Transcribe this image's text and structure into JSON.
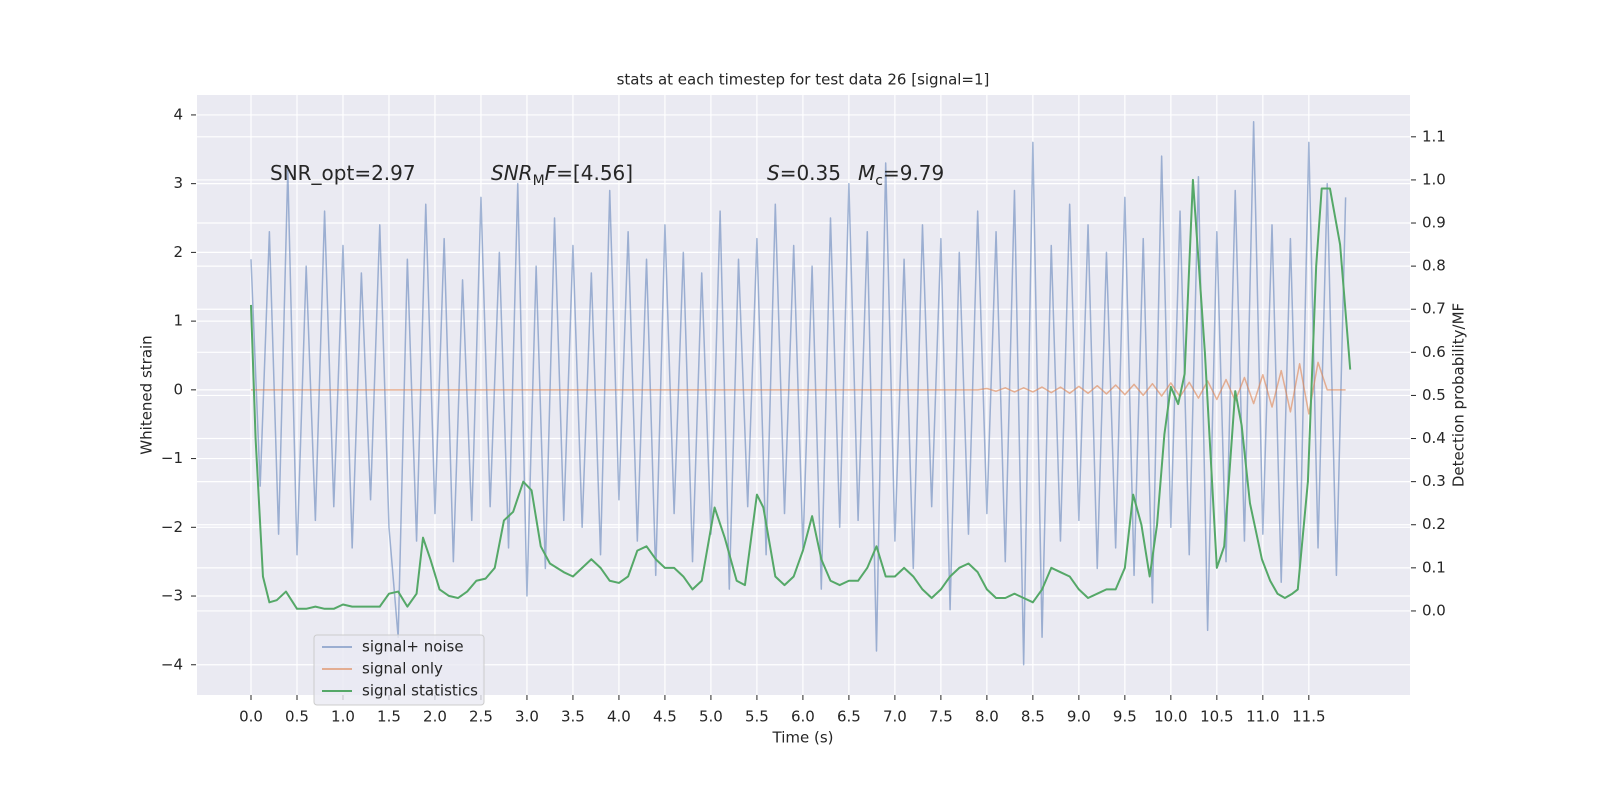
{
  "chart_data": {
    "type": "line",
    "title": "stats at each timestep for test data 26 [signal=1]",
    "xlabel": "Time (s)",
    "ylabel": "Whitened strain",
    "y2label": "Detection probability/MF",
    "grid": true,
    "legend": "lower left",
    "xlim": [
      -0.587,
      12.6
    ],
    "ylim": [
      -4.44,
      4.29
    ],
    "y2lim": [
      -0.195,
      1.197
    ],
    "xticks": [
      {
        "value": 0,
        "label": "0.0"
      },
      {
        "value": 0.5,
        "label": "0.5"
      },
      {
        "value": 1,
        "label": "1.0"
      },
      {
        "value": 1.5,
        "label": "1.5"
      },
      {
        "value": 2,
        "label": "2.0"
      },
      {
        "value": 2.5,
        "label": "2.5"
      },
      {
        "value": 3,
        "label": "3.0"
      },
      {
        "value": 3.5,
        "label": "3.5"
      },
      {
        "value": 4,
        "label": "4.0"
      },
      {
        "value": 4.5,
        "label": "4.5"
      },
      {
        "value": 5,
        "label": "5.0"
      },
      {
        "value": 5.5,
        "label": "5.5"
      },
      {
        "value": 6,
        "label": "6.0"
      },
      {
        "value": 6.5,
        "label": "6.5"
      },
      {
        "value": 7,
        "label": "7.0"
      },
      {
        "value": 7.5,
        "label": "7.5"
      },
      {
        "value": 8,
        "label": "8.0"
      },
      {
        "value": 8.5,
        "label": "8.5"
      },
      {
        "value": 9,
        "label": "9.0"
      },
      {
        "value": 9.5,
        "label": "9.5"
      },
      {
        "value": 10,
        "label": "10.0"
      },
      {
        "value": 10.5,
        "label": "10.5"
      },
      {
        "value": 11,
        "label": "11.0"
      },
      {
        "value": 11.5,
        "label": "11.5"
      }
    ],
    "yticks": [
      {
        "value": -4,
        "label": "−4"
      },
      {
        "value": -3,
        "label": "−3"
      },
      {
        "value": -2,
        "label": "−2"
      },
      {
        "value": -1,
        "label": "−1"
      },
      0,
      1,
      2,
      3,
      4
    ],
    "y2ticks": [
      {
        "value": 0,
        "label": "0.0"
      },
      {
        "value": 0.1,
        "label": "0.1"
      },
      {
        "value": 0.2,
        "label": "0.2"
      },
      {
        "value": 0.3,
        "label": "0.3"
      },
      {
        "value": 0.4,
        "label": "0.4"
      },
      {
        "value": 0.5,
        "label": "0.5"
      },
      {
        "value": 0.6,
        "label": "0.6"
      },
      {
        "value": 0.7,
        "label": "0.7"
      },
      {
        "value": 0.8,
        "label": "0.8"
      },
      {
        "value": 0.9,
        "label": "0.9"
      },
      {
        "value": 1,
        "label": "1.0"
      },
      {
        "value": 1.1,
        "label": "1.1"
      }
    ],
    "annotations": [
      [
        {
          "text": "SNR_opt=2.97"
        }
      ],
      [
        {
          "text": "SNR",
          "style": "italic"
        },
        {
          "text": "M",
          "style": "sub"
        },
        {
          "text": "F",
          "style": "italic"
        },
        {
          "text": "=[4.56]"
        }
      ],
      [
        {
          "text": "S",
          "style": "italic"
        },
        {
          "text": "=0.35"
        }
      ],
      [
        {
          "text": "M",
          "style": "italic"
        },
        {
          "text": "c",
          "style": "sub"
        },
        {
          "text": "=9.79"
        }
      ]
    ],
    "x": [
      0,
      0.1,
      0.2,
      0.3,
      0.4,
      0.5,
      0.6,
      0.7,
      0.8,
      0.9,
      1,
      1.1,
      1.2,
      1.3,
      1.4,
      1.5,
      1.6,
      1.7,
      1.8,
      1.9,
      2,
      2.1,
      2.2,
      2.3,
      2.4,
      2.5,
      2.6,
      2.7,
      2.8,
      2.9,
      3,
      3.1,
      3.2,
      3.3,
      3.4,
      3.5,
      3.6,
      3.7,
      3.8,
      3.9,
      4,
      4.1,
      4.2,
      4.3,
      4.4,
      4.5,
      4.6,
      4.7,
      4.8,
      4.9,
      5,
      5.1,
      5.2,
      5.3,
      5.4,
      5.5,
      5.6,
      5.7,
      5.8,
      5.9,
      6,
      6.1,
      6.2,
      6.3,
      6.4,
      6.5,
      6.6,
      6.7,
      6.8,
      6.9,
      7,
      7.1,
      7.2,
      7.3,
      7.4,
      7.5,
      7.6,
      7.7,
      7.8,
      7.9,
      8,
      8.1,
      8.2,
      8.3,
      8.4,
      8.5,
      8.6,
      8.7,
      8.8,
      8.9,
      9,
      9.1,
      9.2,
      9.3,
      9.4,
      9.5,
      9.6,
      9.7,
      9.8,
      9.9,
      10,
      10.1,
      10.2,
      10.3,
      10.4,
      10.5,
      10.6,
      10.7,
      10.8,
      10.9,
      11,
      11.1,
      11.2,
      11.3,
      11.4,
      11.5,
      11.6,
      11.7,
      11.8,
      11.9
    ],
    "series": [
      {
        "name": "signal+ noise",
        "color": "#4c72b0",
        "opacity": 0.5,
        "values": [
          1.9,
          -1.4,
          2.3,
          -2.1,
          3.2,
          -2.4,
          1.8,
          -1.9,
          2.6,
          -1.7,
          2.1,
          -2.3,
          1.7,
          -1.6,
          2.4,
          -2.0,
          -3.6,
          1.9,
          -2.2,
          2.7,
          -1.8,
          2.2,
          -2.5,
          1.6,
          -1.9,
          2.8,
          -1.7,
          2.0,
          -2.3,
          3.0,
          -3.0,
          1.8,
          -2.6,
          2.5,
          -1.9,
          2.1,
          -2.0,
          1.7,
          -2.4,
          2.9,
          -1.6,
          2.3,
          -2.2,
          1.9,
          -2.7,
          2.4,
          -1.8,
          2.0,
          -2.5,
          1.7,
          -2.1,
          2.6,
          -2.9,
          1.9,
          -1.7,
          2.2,
          -2.4,
          2.7,
          -1.8,
          2.1,
          -2.3,
          1.8,
          -2.9,
          2.5,
          -2.0,
          3.0,
          -1.9,
          2.3,
          -3.8,
          3.3,
          -2.2,
          1.9,
          -2.6,
          2.4,
          -1.7,
          2.2,
          -3.2,
          2.0,
          -2.1,
          2.6,
          -1.8,
          2.3,
          -2.5,
          2.9,
          -4.0,
          3.6,
          -3.6,
          2.1,
          -2.2,
          2.7,
          -1.9,
          2.4,
          -2.6,
          2.0,
          -2.3,
          2.8,
          -2.7,
          2.2,
          -3.1,
          3.4,
          -2.0,
          2.6,
          -2.4,
          3.1,
          -3.5,
          2.3,
          -2.5,
          2.9,
          -2.2,
          3.9,
          -2.1,
          2.4,
          -2.8,
          2.2,
          -2.6,
          3.6,
          -2.3,
          3.0,
          -2.7,
          2.8
        ]
      },
      {
        "name": "signal only",
        "color": "#dd8452",
        "opacity": 0.6,
        "values": [
          0,
          0,
          0,
          0,
          0,
          0,
          0,
          0,
          0,
          0,
          0,
          0,
          0,
          0,
          0,
          0,
          0,
          0,
          0,
          0,
          0,
          0,
          0,
          0,
          0,
          0,
          0,
          0,
          0,
          0,
          0,
          0,
          0,
          0,
          0,
          0,
          0,
          0,
          0,
          0,
          0,
          0,
          0,
          0,
          0,
          0,
          0,
          0,
          0,
          0,
          0,
          0,
          0,
          0,
          0,
          0,
          0,
          0,
          0,
          0,
          0,
          0,
          0,
          0,
          0,
          0,
          0,
          0,
          0,
          0,
          0,
          0,
          0,
          0,
          0,
          0,
          0,
          0,
          0,
          0,
          0.02,
          -0.02,
          0.03,
          -0.03,
          0.03,
          -0.03,
          0.04,
          -0.04,
          0.04,
          -0.05,
          0.05,
          -0.05,
          0.06,
          -0.06,
          0.07,
          -0.07,
          0.08,
          -0.08,
          0.09,
          -0.09,
          0.1,
          -0.1,
          0.11,
          -0.12,
          0.13,
          -0.14,
          0.15,
          -0.16,
          0.18,
          -0.2,
          0.22,
          -0.25,
          0.28,
          -0.32,
          0.38,
          -0.35,
          0.4,
          0,
          0,
          0
        ]
      },
      {
        "name": "signal statistics",
        "color": "#55a868",
        "opacity": 1,
        "axis": "y2",
        "x": [
          0,
          0.05,
          0.13,
          0.2,
          0.28,
          0.38,
          0.5,
          0.6,
          0.7,
          0.8,
          0.9,
          1,
          1.1,
          1.2,
          1.3,
          1.4,
          1.5,
          1.6,
          1.7,
          1.8,
          1.87,
          1.95,
          2.05,
          2.15,
          2.25,
          2.35,
          2.45,
          2.55,
          2.65,
          2.75,
          2.85,
          2.96,
          3.05,
          3.15,
          3.25,
          3.4,
          3.5,
          3.6,
          3.7,
          3.8,
          3.9,
          4,
          4.1,
          4.2,
          4.3,
          4.4,
          4.5,
          4.6,
          4.7,
          4.8,
          4.9,
          5.04,
          5.15,
          5.28,
          5.37,
          5.5,
          5.57,
          5.7,
          5.8,
          5.9,
          6,
          6.1,
          6.2,
          6.3,
          6.4,
          6.5,
          6.6,
          6.7,
          6.8,
          6.9,
          7,
          7.1,
          7.2,
          7.3,
          7.4,
          7.5,
          7.6,
          7.7,
          7.8,
          7.9,
          8,
          8.1,
          8.2,
          8.3,
          8.4,
          8.5,
          8.6,
          8.7,
          8.8,
          8.9,
          9,
          9.1,
          9.2,
          9.3,
          9.4,
          9.5,
          9.59,
          9.68,
          9.77,
          9.85,
          9.93,
          10,
          10.08,
          10.15,
          10.24,
          10.37,
          10.5,
          10.58,
          10.7,
          10.77,
          10.86,
          10.99,
          11.08,
          11.16,
          11.24,
          11.32,
          11.38,
          11.49,
          11.58,
          11.64,
          11.73,
          11.84,
          11.95
        ],
        "values": [
          0.71,
          0.4,
          0.08,
          0.02,
          0.025,
          0.045,
          0.005,
          0.005,
          0.01,
          0.005,
          0.005,
          0.015,
          0.01,
          0.01,
          0.01,
          0.01,
          0.04,
          0.045,
          0.01,
          0.04,
          0.17,
          0.12,
          0.05,
          0.035,
          0.03,
          0.045,
          0.07,
          0.075,
          0.1,
          0.21,
          0.23,
          0.3,
          0.28,
          0.15,
          0.11,
          0.09,
          0.08,
          0.1,
          0.12,
          0.1,
          0.07,
          0.065,
          0.08,
          0.14,
          0.15,
          0.12,
          0.1,
          0.1,
          0.08,
          0.05,
          0.07,
          0.24,
          0.17,
          0.07,
          0.06,
          0.27,
          0.24,
          0.08,
          0.06,
          0.08,
          0.14,
          0.22,
          0.12,
          0.07,
          0.06,
          0.07,
          0.07,
          0.1,
          0.15,
          0.08,
          0.08,
          0.1,
          0.08,
          0.05,
          0.03,
          0.05,
          0.08,
          0.1,
          0.11,
          0.09,
          0.05,
          0.03,
          0.03,
          0.04,
          0.03,
          0.02,
          0.05,
          0.1,
          0.09,
          0.08,
          0.05,
          0.03,
          0.04,
          0.05,
          0.05,
          0.1,
          0.27,
          0.2,
          0.08,
          0.2,
          0.41,
          0.52,
          0.48,
          0.55,
          1.0,
          0.6,
          0.1,
          0.15,
          0.51,
          0.43,
          0.25,
          0.12,
          0.07,
          0.04,
          0.03,
          0.04,
          0.05,
          0.3,
          0.8,
          0.98,
          0.98,
          0.85,
          0.56
        ]
      }
    ]
  }
}
